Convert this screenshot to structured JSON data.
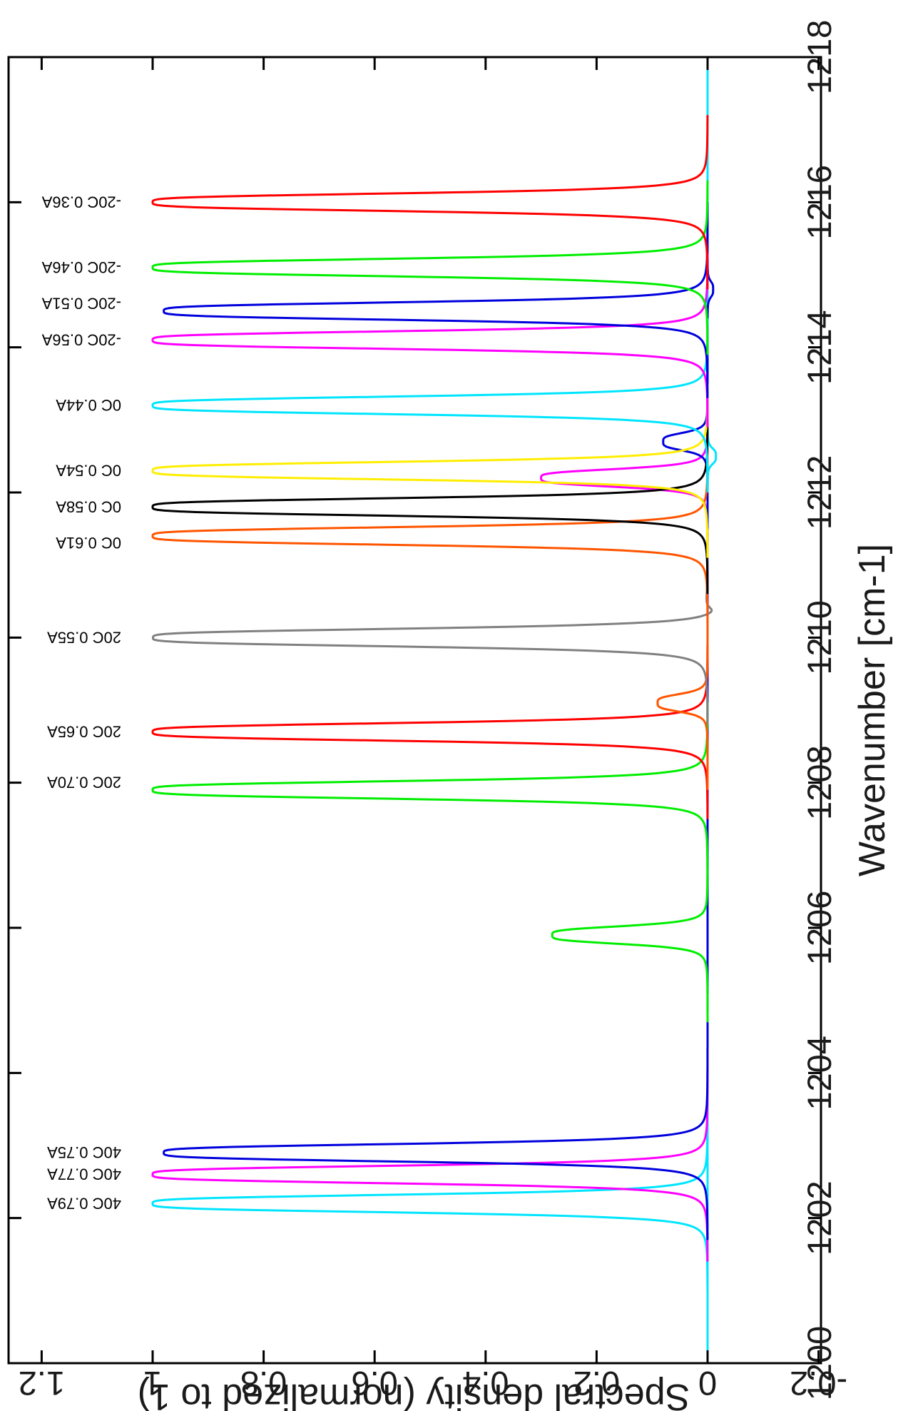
{
  "chart_data": {
    "type": "line",
    "title": "",
    "xlabel": "Wavenumber [cm-1]",
    "ylabel": "Spectral density (normalized to 1)",
    "xlim": [
      1200,
      1218
    ],
    "ylim": [
      -0.2,
      1.25
    ],
    "orientation": "rotated 90 degrees clockwise (image upside-down reading)",
    "grid": false,
    "legend": "none",
    "x_ticks": [
      1200,
      1202,
      1204,
      1206,
      1208,
      1210,
      1212,
      1214,
      1216,
      1218
    ],
    "x_tick_labels": [
      "1200",
      "1202",
      "1204",
      "1206",
      "1208",
      "1210",
      "1212",
      "1214",
      "1216",
      "1218"
    ],
    "y_ticks": [
      -0.2,
      0,
      0.2,
      0.4,
      0.6,
      0.8,
      1,
      1.2
    ],
    "y_tick_labels": [
      "-0.2",
      "0",
      "0.2",
      "0.4",
      "0.6",
      "0.8",
      "1",
      "1.2"
    ],
    "series": [
      {
        "color": "#00e5ff",
        "peaks": [
          [
            1202.2,
            1.0
          ]
        ],
        "dips": [
          [
            1212.5,
            -0.015
          ]
        ]
      },
      {
        "color": "#ff00ff",
        "peaks": [
          [
            1202.6,
            1.0
          ],
          [
            1212.2,
            0.3
          ]
        ]
      },
      {
        "color": "#0000dd",
        "peaks": [
          [
            1202.9,
            0.98
          ],
          [
            1212.7,
            0.08
          ]
        ],
        "dips": [
          [
            1214.8,
            -0.01
          ]
        ]
      },
      {
        "color": "#00ee00",
        "peaks": [
          [
            1205.9,
            0.28
          ],
          [
            1207.9,
            1.0
          ]
        ]
      },
      {
        "color": "#ff0000",
        "peaks": [
          [
            1208.7,
            1.0
          ]
        ]
      },
      {
        "color": "#ff5500",
        "peaks": [
          [
            1209.1,
            0.09
          ]
        ]
      },
      {
        "color": "#808080",
        "peaks": [
          [
            1210.0,
            1.0
          ]
        ],
        "dips": [
          [
            1210.3,
            -0.025
          ]
        ]
      },
      {
        "color": "#ff5500",
        "peaks": [
          [
            1211.4,
            1.0
          ]
        ]
      },
      {
        "color": "#000000",
        "peaks": [
          [
            1211.8,
            1.0
          ]
        ]
      },
      {
        "color": "#ffee00",
        "peaks": [
          [
            1212.3,
            1.0
          ]
        ]
      },
      {
        "color": "#00e5ff",
        "peaks": [
          [
            1213.2,
            1.0
          ]
        ]
      },
      {
        "color": "#ff00ff",
        "peaks": [
          [
            1214.1,
            1.0
          ]
        ]
      },
      {
        "color": "#0000dd",
        "peaks": [
          [
            1214.5,
            0.98
          ]
        ]
      },
      {
        "color": "#00ee00",
        "peaks": [
          [
            1215.1,
            1.0
          ]
        ]
      },
      {
        "color": "#ff0000",
        "peaks": [
          [
            1216.0,
            1.0
          ]
        ]
      }
    ],
    "annotations": [
      {
        "text": "40C 0.79A",
        "x": 1202.2,
        "y": 1.0
      },
      {
        "text": "40C 0.77A",
        "x": 1202.6,
        "y": 1.0
      },
      {
        "text": "40C 0.75A",
        "x": 1202.9,
        "y": 1.0
      },
      {
        "text": "20C 0.70A",
        "x": 1208.0,
        "y": 1.0
      },
      {
        "text": "20C 0.65A",
        "x": 1208.7,
        "y": 1.0
      },
      {
        "text": "20C 0.55A",
        "x": 1210.0,
        "y": 1.0
      },
      {
        "text": "0C 0.61A",
        "x": 1211.3,
        "y": 1.0
      },
      {
        "text": "0C 0.58A",
        "x": 1211.8,
        "y": 1.0
      },
      {
        "text": "0C 0.54A",
        "x": 1212.3,
        "y": 1.0
      },
      {
        "text": "0C 0.44A",
        "x": 1213.2,
        "y": 1.0
      },
      {
        "text": "-20C 0.56A",
        "x": 1214.1,
        "y": 1.0
      },
      {
        "text": "-20C 0.51A",
        "x": 1214.6,
        "y": 1.0
      },
      {
        "text": "-20C 0.46A",
        "x": 1215.1,
        "y": 1.0
      },
      {
        "text": "-20C 0.36A",
        "x": 1216.0,
        "y": 1.0
      }
    ]
  }
}
